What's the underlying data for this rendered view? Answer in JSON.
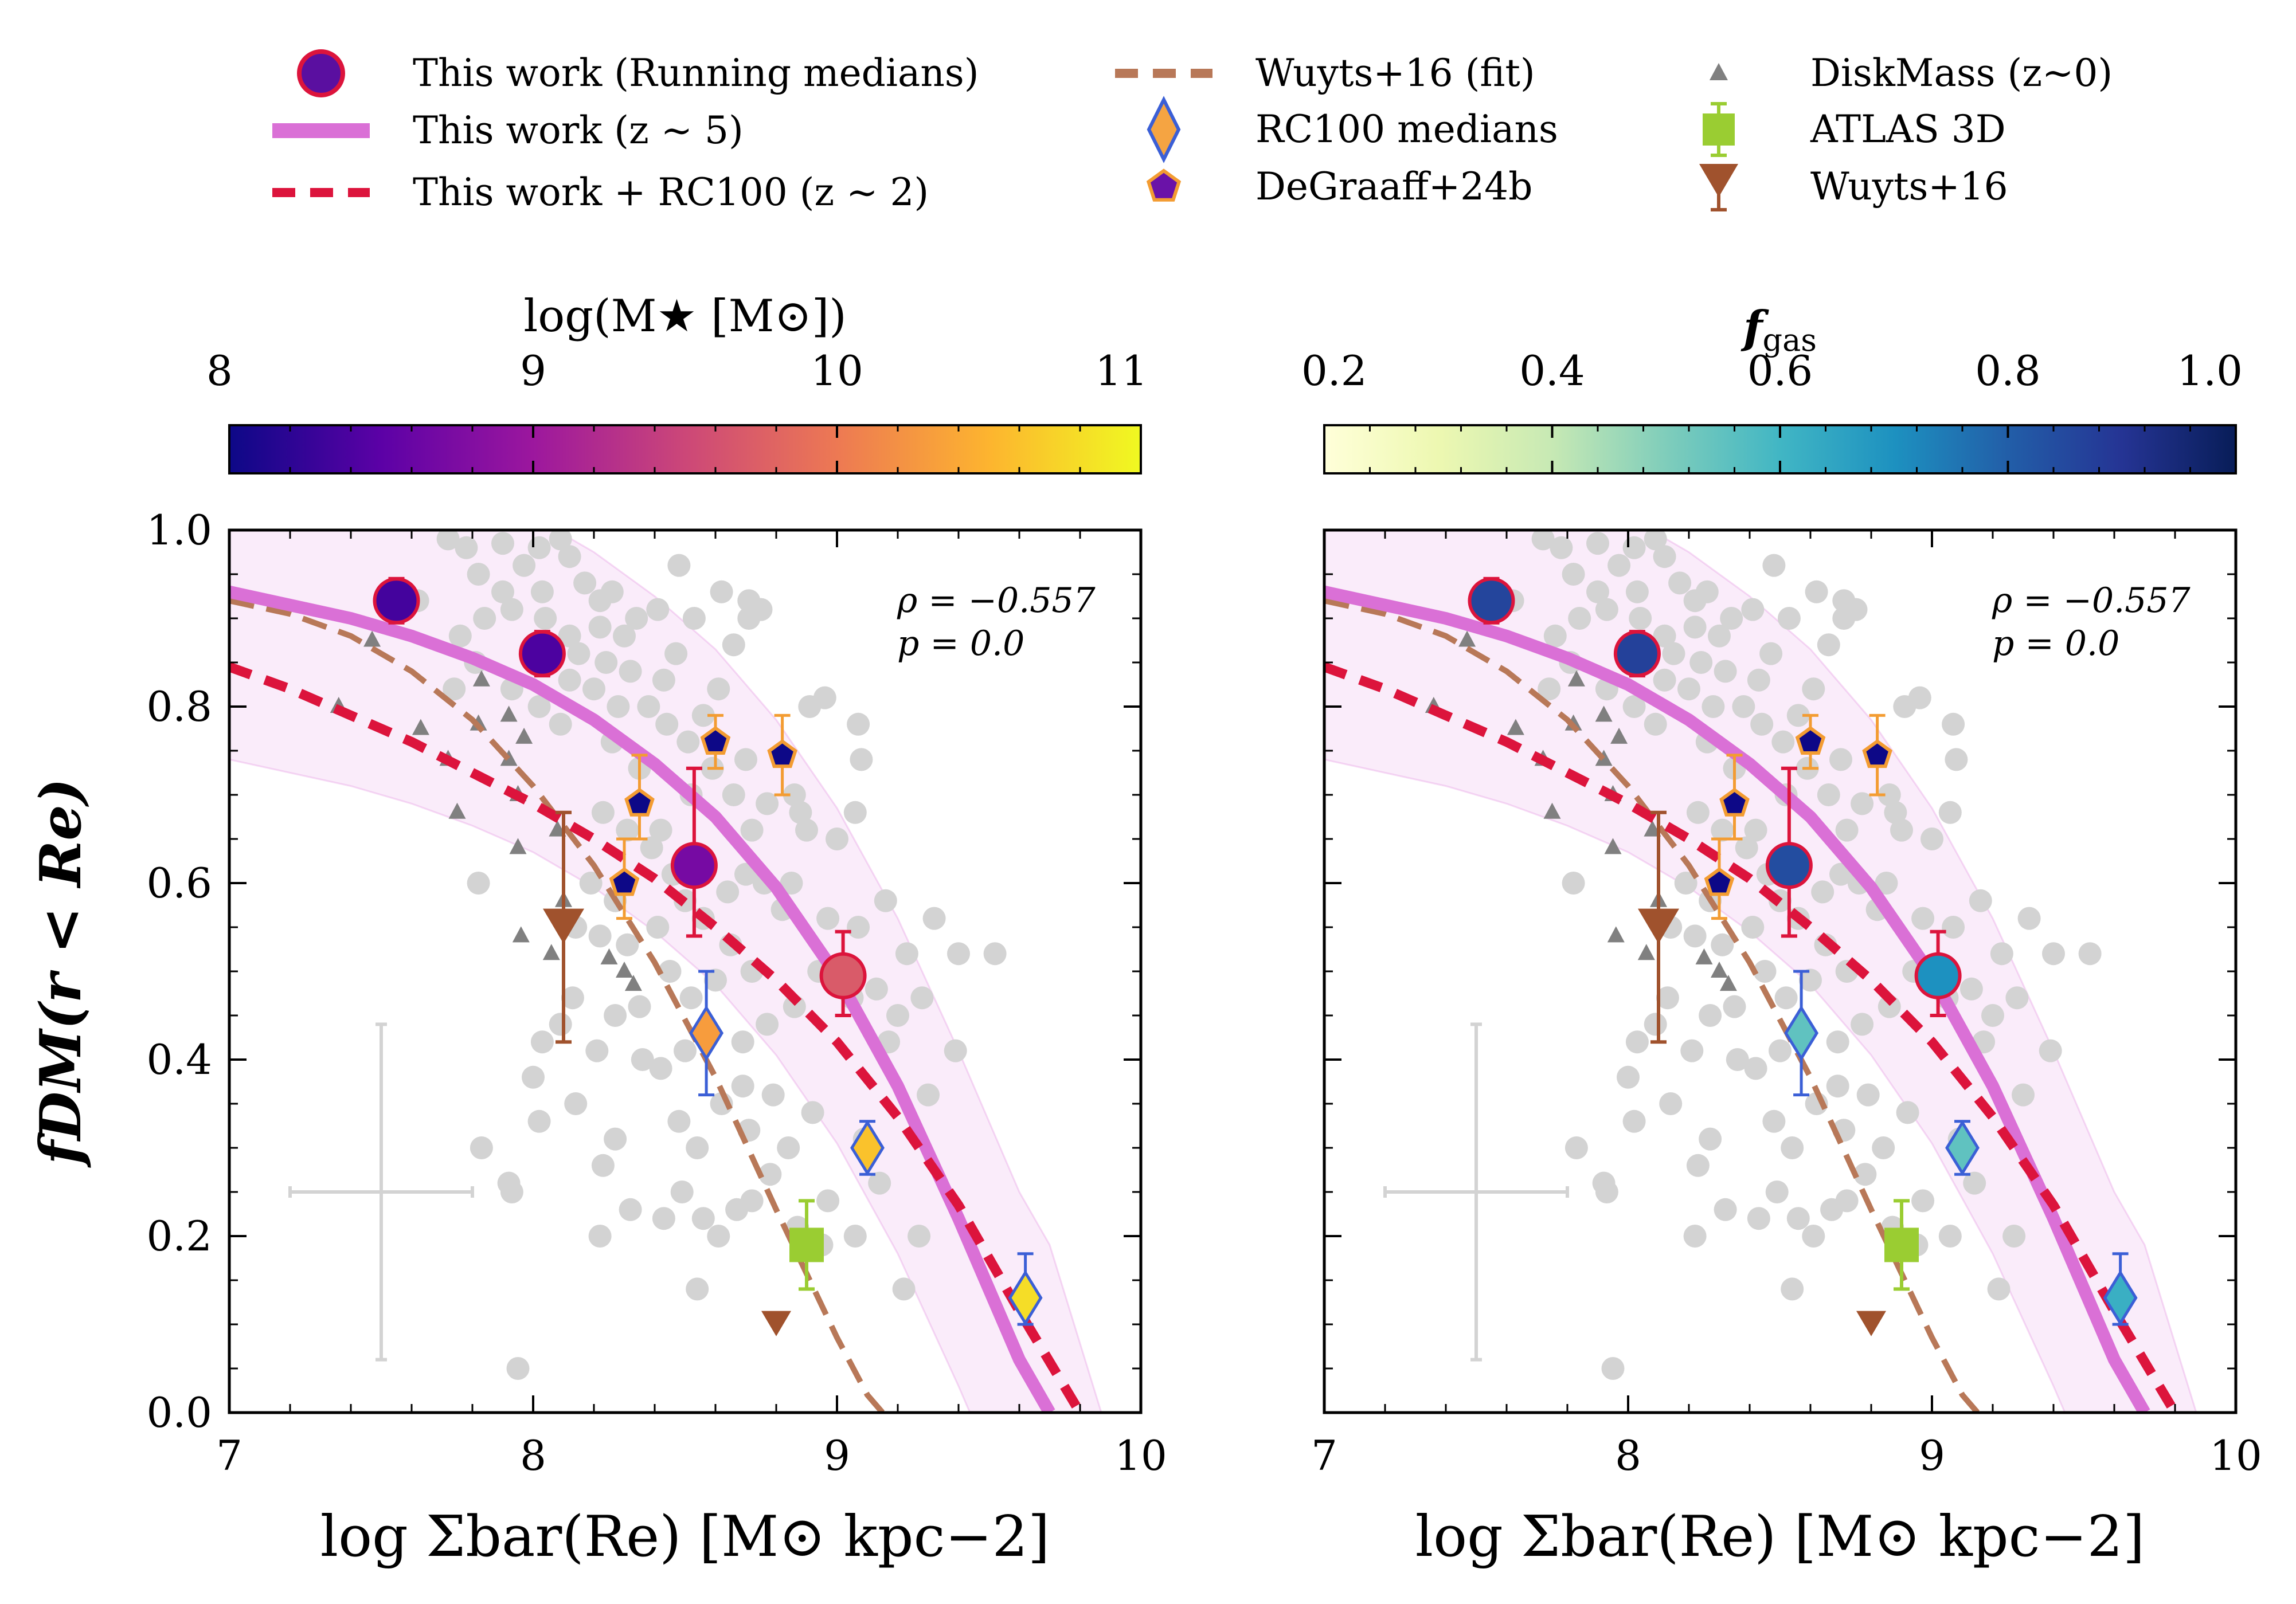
{
  "legend": {
    "items": [
      {
        "key": "running_medians",
        "label": "This work (Running medians)",
        "symbol": "circle",
        "color": "#5a0fa0",
        "edge": "#dc143c"
      },
      {
        "key": "z5",
        "label": "This work (z ∼ 5)",
        "symbol": "solid-line",
        "color": "#da70d6"
      },
      {
        "key": "z2",
        "label": "This work + RC100 (z ∼ 2)",
        "symbol": "dashed-line",
        "color": "#dc143c"
      },
      {
        "key": "wuyts_fit",
        "label": "Wuyts+16 (fit)",
        "symbol": "dashed-line",
        "color": "#b87858"
      },
      {
        "key": "rc100",
        "label": "RC100 medians",
        "symbol": "diamond",
        "color": "#f5a442",
        "edge": "#3b5fd6"
      },
      {
        "key": "degraaff",
        "label": "DeGraaff+24b",
        "symbol": "pentagon",
        "color": "#6a12a8",
        "edge": "#f39c32"
      },
      {
        "key": "diskmass",
        "label": "DiskMass (z~0)",
        "symbol": "triangle",
        "color": "#808080"
      },
      {
        "key": "atlas",
        "label": "ATLAS 3D",
        "symbol": "square",
        "color": "#9acd32"
      },
      {
        "key": "wuyts16",
        "label": "Wuyts+16",
        "symbol": "triangle-down",
        "color": "#a0522d"
      }
    ]
  },
  "colorbars": [
    {
      "label": "log(M★ [M⊙])",
      "min": 8,
      "max": 11,
      "ticks": [
        "8",
        "9",
        "10",
        "11"
      ],
      "colormap": "plasma",
      "stops": [
        "#0d0887",
        "#5c01a6",
        "#9c179e",
        "#cc4778",
        "#ed7953",
        "#fdb42f",
        "#f0f921"
      ]
    },
    {
      "label": "f_gas",
      "label_main": "f",
      "label_sub": "gas",
      "min": 0.2,
      "max": 1.0,
      "ticks": [
        "0.2",
        "0.4",
        "0.6",
        "0.8",
        "1.0"
      ],
      "colormap": "YlGnBu",
      "stops": [
        "#ffffd9",
        "#edf8b1",
        "#c7e9b4",
        "#7fcdbb",
        "#41b6c4",
        "#1d91c0",
        "#225ea8",
        "#253494",
        "#081d58"
      ]
    }
  ],
  "panels": [
    {
      "annotation": {
        "rho": "ρ = −0.557",
        "p": "p = 0.0"
      },
      "color_by": "logMstar"
    },
    {
      "annotation": {
        "rho": "ρ = −0.557",
        "p": "p = 0.0"
      },
      "color_by": "fgas"
    }
  ],
  "axes": {
    "xlabel": "log Σbar(Re) [M⊙ kpc−2]",
    "ylabel": "fDM(r < Re)",
    "xlim": [
      7,
      10
    ],
    "ylim": [
      0.0,
      1.0
    ],
    "xticks": [
      "7",
      "8",
      "9",
      "10"
    ],
    "yticks": [
      "0.0",
      "0.2",
      "0.4",
      "0.6",
      "0.8",
      "1.0"
    ]
  },
  "chart_data": {
    "type": "scatter",
    "xlim": [
      7,
      10
    ],
    "ylim": [
      0.0,
      1.0
    ],
    "grid": false,
    "legend_placement": "top",
    "series": [
      {
        "name": "This work (Running medians)",
        "points": [
          {
            "x": 7.55,
            "y": 0.92,
            "logMstar": 8.35,
            "fgas": 0.86
          },
          {
            "x": 8.03,
            "y": 0.86,
            "logMstar": 8.4,
            "fgas": 0.87
          },
          {
            "x": 8.53,
            "y": 0.62,
            "logMstar": 8.7,
            "fgas": 0.84,
            "ylo": 0.54,
            "yhi": 0.73
          },
          {
            "x": 9.02,
            "y": 0.495,
            "logMstar": 9.7,
            "fgas": 0.7,
            "ylo": 0.45,
            "yhi": 0.545
          }
        ]
      },
      {
        "name": "This work (z ∼ 5)",
        "line": "solid",
        "band_width": 0.19,
        "x": [
          7.0,
          7.2,
          7.4,
          7.6,
          7.8,
          8.0,
          8.2,
          8.4,
          8.6,
          8.8,
          9.0,
          9.2,
          9.4,
          9.6,
          9.7
        ],
        "y": [
          0.93,
          0.915,
          0.9,
          0.88,
          0.855,
          0.825,
          0.785,
          0.735,
          0.675,
          0.595,
          0.495,
          0.37,
          0.22,
          0.06,
          0.0
        ]
      },
      {
        "name": "This work + RC100 (z ∼ 2)",
        "line": "dashed",
        "x": [
          7.0,
          7.2,
          7.4,
          7.6,
          7.8,
          8.0,
          8.2,
          8.4,
          8.6,
          8.8,
          9.0,
          9.2,
          9.4,
          9.6,
          9.8
        ],
        "y": [
          0.845,
          0.82,
          0.79,
          0.76,
          0.725,
          0.69,
          0.65,
          0.605,
          0.55,
          0.49,
          0.42,
          0.335,
          0.235,
          0.115,
          0.0
        ]
      },
      {
        "name": "Wuyts+16 (fit)",
        "line": "dashed",
        "x": [
          7.0,
          7.2,
          7.4,
          7.6,
          7.8,
          8.0,
          8.2,
          8.4,
          8.6,
          8.8,
          9.0,
          9.1,
          9.15
        ],
        "y": [
          0.92,
          0.905,
          0.88,
          0.84,
          0.785,
          0.71,
          0.62,
          0.51,
          0.38,
          0.23,
          0.085,
          0.02,
          0.0
        ]
      },
      {
        "name": "RC100 medians",
        "points": [
          {
            "x": 8.57,
            "y": 0.43,
            "ylo": 0.36,
            "yhi": 0.5,
            "logMstar": 10.3,
            "fgas": 0.55
          },
          {
            "x": 9.1,
            "y": 0.3,
            "ylo": 0.27,
            "yhi": 0.33,
            "logMstar": 10.6,
            "fgas": 0.55
          },
          {
            "x": 9.62,
            "y": 0.13,
            "ylo": 0.1,
            "yhi": 0.18,
            "logMstar": 10.8,
            "fgas": 0.62
          }
        ]
      },
      {
        "name": "DeGraaff+24b",
        "points": [
          {
            "x": 8.3,
            "y": 0.6,
            "ylo": 0.56,
            "yhi": 0.65
          },
          {
            "x": 8.35,
            "y": 0.69,
            "ylo": 0.65,
            "yhi": 0.745
          },
          {
            "x": 8.6,
            "y": 0.76,
            "ylo": 0.73,
            "yhi": 0.79
          },
          {
            "x": 8.82,
            "y": 0.745,
            "ylo": 0.7,
            "yhi": 0.79
          }
        ]
      },
      {
        "name": "DiskMass (z~0)",
        "points": [
          {
            "x": 7.47,
            "y": 0.875
          },
          {
            "x": 7.36,
            "y": 0.8
          },
          {
            "x": 7.63,
            "y": 0.775
          },
          {
            "x": 7.83,
            "y": 0.83
          },
          {
            "x": 7.82,
            "y": 0.78
          },
          {
            "x": 7.92,
            "y": 0.79
          },
          {
            "x": 7.97,
            "y": 0.765
          },
          {
            "x": 7.72,
            "y": 0.74
          },
          {
            "x": 7.92,
            "y": 0.74
          },
          {
            "x": 7.75,
            "y": 0.68
          },
          {
            "x": 7.95,
            "y": 0.7
          },
          {
            "x": 8.08,
            "y": 0.66
          },
          {
            "x": 7.95,
            "y": 0.64
          },
          {
            "x": 8.1,
            "y": 0.58
          },
          {
            "x": 7.96,
            "y": 0.54
          },
          {
            "x": 8.06,
            "y": 0.52
          },
          {
            "x": 8.25,
            "y": 0.515
          },
          {
            "x": 8.3,
            "y": 0.5
          },
          {
            "x": 8.33,
            "y": 0.485
          }
        ]
      },
      {
        "name": "ATLAS 3D",
        "points": [
          {
            "x": 8.9,
            "y": 0.19,
            "ylo": 0.14,
            "yhi": 0.24
          }
        ]
      },
      {
        "name": "Wuyts+16",
        "points": [
          {
            "x": 8.1,
            "y": 0.55,
            "ylo": 0.42,
            "yhi": 0.68
          },
          {
            "x": 8.8,
            "y": 0.1
          }
        ]
      },
      {
        "name": "Individual galaxies",
        "color": "#d3d3d3",
        "points": [
          {
            "x": 7.72,
            "y": 0.99
          },
          {
            "x": 7.78,
            "y": 0.98
          },
          {
            "x": 7.9,
            "y": 0.985
          },
          {
            "x": 8.02,
            "y": 0.98
          },
          {
            "x": 8.12,
            "y": 0.97
          },
          {
            "x": 8.09,
            "y": 0.99
          },
          {
            "x": 7.82,
            "y": 0.95
          },
          {
            "x": 7.97,
            "y": 0.96
          },
          {
            "x": 7.9,
            "y": 0.93
          },
          {
            "x": 7.93,
            "y": 0.91
          },
          {
            "x": 7.84,
            "y": 0.9
          },
          {
            "x": 7.62,
            "y": 0.92
          },
          {
            "x": 8.03,
            "y": 0.93
          },
          {
            "x": 8.17,
            "y": 0.94
          },
          {
            "x": 8.22,
            "y": 0.92
          },
          {
            "x": 8.26,
            "y": 0.93
          },
          {
            "x": 8.34,
            "y": 0.9
          },
          {
            "x": 8.3,
            "y": 0.88
          },
          {
            "x": 8.41,
            "y": 0.91
          },
          {
            "x": 8.22,
            "y": 0.89
          },
          {
            "x": 8.12,
            "y": 0.88
          },
          {
            "x": 8.04,
            "y": 0.9
          },
          {
            "x": 8.15,
            "y": 0.86
          },
          {
            "x": 8.24,
            "y": 0.85
          },
          {
            "x": 8.32,
            "y": 0.84
          },
          {
            "x": 8.12,
            "y": 0.83
          },
          {
            "x": 8.2,
            "y": 0.82
          },
          {
            "x": 8.28,
            "y": 0.8
          },
          {
            "x": 7.81,
            "y": 0.85
          },
          {
            "x": 7.76,
            "y": 0.88
          },
          {
            "x": 7.74,
            "y": 0.82
          },
          {
            "x": 7.93,
            "y": 0.82
          },
          {
            "x": 8.02,
            "y": 0.8
          },
          {
            "x": 8.09,
            "y": 0.78
          },
          {
            "x": 8.0,
            "y": 0.86
          },
          {
            "x": 8.48,
            "y": 0.96
          },
          {
            "x": 8.53,
            "y": 0.9
          },
          {
            "x": 8.47,
            "y": 0.86
          },
          {
            "x": 8.43,
            "y": 0.83
          },
          {
            "x": 8.38,
            "y": 0.8
          },
          {
            "x": 8.44,
            "y": 0.78
          },
          {
            "x": 8.51,
            "y": 0.76
          },
          {
            "x": 8.56,
            "y": 0.79
          },
          {
            "x": 8.61,
            "y": 0.82
          },
          {
            "x": 8.66,
            "y": 0.87
          },
          {
            "x": 8.71,
            "y": 0.92
          },
          {
            "x": 8.62,
            "y": 0.93
          },
          {
            "x": 8.75,
            "y": 0.91
          },
          {
            "x": 8.71,
            "y": 0.9
          },
          {
            "x": 8.59,
            "y": 0.73
          },
          {
            "x": 8.66,
            "y": 0.7
          },
          {
            "x": 8.7,
            "y": 0.74
          },
          {
            "x": 8.72,
            "y": 0.66
          },
          {
            "x": 8.77,
            "y": 0.69
          },
          {
            "x": 8.86,
            "y": 0.7
          },
          {
            "x": 8.91,
            "y": 0.8
          },
          {
            "x": 8.96,
            "y": 0.81
          },
          {
            "x": 9.07,
            "y": 0.78
          },
          {
            "x": 8.88,
            "y": 0.68
          },
          {
            "x": 8.52,
            "y": 0.7
          },
          {
            "x": 8.42,
            "y": 0.66
          },
          {
            "x": 8.26,
            "y": 0.76
          },
          {
            "x": 8.35,
            "y": 0.73
          },
          {
            "x": 8.23,
            "y": 0.68
          },
          {
            "x": 8.31,
            "y": 0.66
          },
          {
            "x": 8.39,
            "y": 0.64
          },
          {
            "x": 8.46,
            "y": 0.61
          },
          {
            "x": 8.19,
            "y": 0.6
          },
          {
            "x": 8.27,
            "y": 0.58
          },
          {
            "x": 8.14,
            "y": 0.55
          },
          {
            "x": 8.22,
            "y": 0.54
          },
          {
            "x": 8.31,
            "y": 0.53
          },
          {
            "x": 8.41,
            "y": 0.55
          },
          {
            "x": 8.5,
            "y": 0.58
          },
          {
            "x": 8.56,
            "y": 0.56
          },
          {
            "x": 8.64,
            "y": 0.59
          },
          {
            "x": 8.7,
            "y": 0.61
          },
          {
            "x": 8.76,
            "y": 0.6
          },
          {
            "x": 8.82,
            "y": 0.57
          },
          {
            "x": 8.65,
            "y": 0.53
          },
          {
            "x": 8.72,
            "y": 0.5
          },
          {
            "x": 8.6,
            "y": 0.49
          },
          {
            "x": 8.52,
            "y": 0.47
          },
          {
            "x": 8.45,
            "y": 0.5
          },
          {
            "x": 8.35,
            "y": 0.46
          },
          {
            "x": 8.27,
            "y": 0.45
          },
          {
            "x": 8.21,
            "y": 0.41
          },
          {
            "x": 8.13,
            "y": 0.47
          },
          {
            "x": 8.09,
            "y": 0.44
          },
          {
            "x": 8.03,
            "y": 0.42
          },
          {
            "x": 8.14,
            "y": 0.35
          },
          {
            "x": 8.36,
            "y": 0.4
          },
          {
            "x": 8.42,
            "y": 0.39
          },
          {
            "x": 8.5,
            "y": 0.41
          },
          {
            "x": 8.58,
            "y": 0.43
          },
          {
            "x": 8.69,
            "y": 0.42
          },
          {
            "x": 8.77,
            "y": 0.44
          },
          {
            "x": 8.86,
            "y": 0.46
          },
          {
            "x": 8.94,
            "y": 0.5
          },
          {
            "x": 9.05,
            "y": 0.47
          },
          {
            "x": 9.13,
            "y": 0.48
          },
          {
            "x": 9.2,
            "y": 0.45
          },
          {
            "x": 9.28,
            "y": 0.47
          },
          {
            "x": 9.23,
            "y": 0.52
          },
          {
            "x": 9.4,
            "y": 0.52
          },
          {
            "x": 9.32,
            "y": 0.56
          },
          {
            "x": 9.16,
            "y": 0.58
          },
          {
            "x": 9.07,
            "y": 0.55
          },
          {
            "x": 8.97,
            "y": 0.56
          },
          {
            "x": 8.85,
            "y": 0.6
          },
          {
            "x": 8.9,
            "y": 0.66
          },
          {
            "x": 9.0,
            "y": 0.65
          },
          {
            "x": 9.06,
            "y": 0.68
          },
          {
            "x": 9.08,
            "y": 0.74
          },
          {
            "x": 7.82,
            "y": 0.6
          },
          {
            "x": 8.0,
            "y": 0.38
          },
          {
            "x": 8.02,
            "y": 0.33
          },
          {
            "x": 7.83,
            "y": 0.3
          },
          {
            "x": 7.92,
            "y": 0.26
          },
          {
            "x": 7.93,
            "y": 0.25
          },
          {
            "x": 8.23,
            "y": 0.28
          },
          {
            "x": 8.27,
            "y": 0.31
          },
          {
            "x": 8.22,
            "y": 0.2
          },
          {
            "x": 8.32,
            "y": 0.23
          },
          {
            "x": 8.43,
            "y": 0.22
          },
          {
            "x": 8.49,
            "y": 0.25
          },
          {
            "x": 8.56,
            "y": 0.22
          },
          {
            "x": 8.67,
            "y": 0.23
          },
          {
            "x": 8.61,
            "y": 0.2
          },
          {
            "x": 8.72,
            "y": 0.24
          },
          {
            "x": 8.78,
            "y": 0.27
          },
          {
            "x": 8.87,
            "y": 0.21
          },
          {
            "x": 8.95,
            "y": 0.19
          },
          {
            "x": 8.97,
            "y": 0.24
          },
          {
            "x": 8.84,
            "y": 0.3
          },
          {
            "x": 8.71,
            "y": 0.32
          },
          {
            "x": 8.62,
            "y": 0.35
          },
          {
            "x": 8.54,
            "y": 0.3
          },
          {
            "x": 8.48,
            "y": 0.33
          },
          {
            "x": 8.69,
            "y": 0.37
          },
          {
            "x": 8.79,
            "y": 0.36
          },
          {
            "x": 8.92,
            "y": 0.34
          },
          {
            "x": 9.09,
            "y": 0.31
          },
          {
            "x": 9.14,
            "y": 0.26
          },
          {
            "x": 9.06,
            "y": 0.2
          },
          {
            "x": 8.54,
            "y": 0.14
          },
          {
            "x": 9.22,
            "y": 0.14
          },
          {
            "x": 9.27,
            "y": 0.2
          },
          {
            "x": 9.3,
            "y": 0.36
          },
          {
            "x": 9.39,
            "y": 0.41
          },
          {
            "x": 9.52,
            "y": 0.52
          },
          {
            "x": 9.17,
            "y": 0.42
          },
          {
            "x": 7.95,
            "y": 0.05
          }
        ]
      }
    ]
  }
}
